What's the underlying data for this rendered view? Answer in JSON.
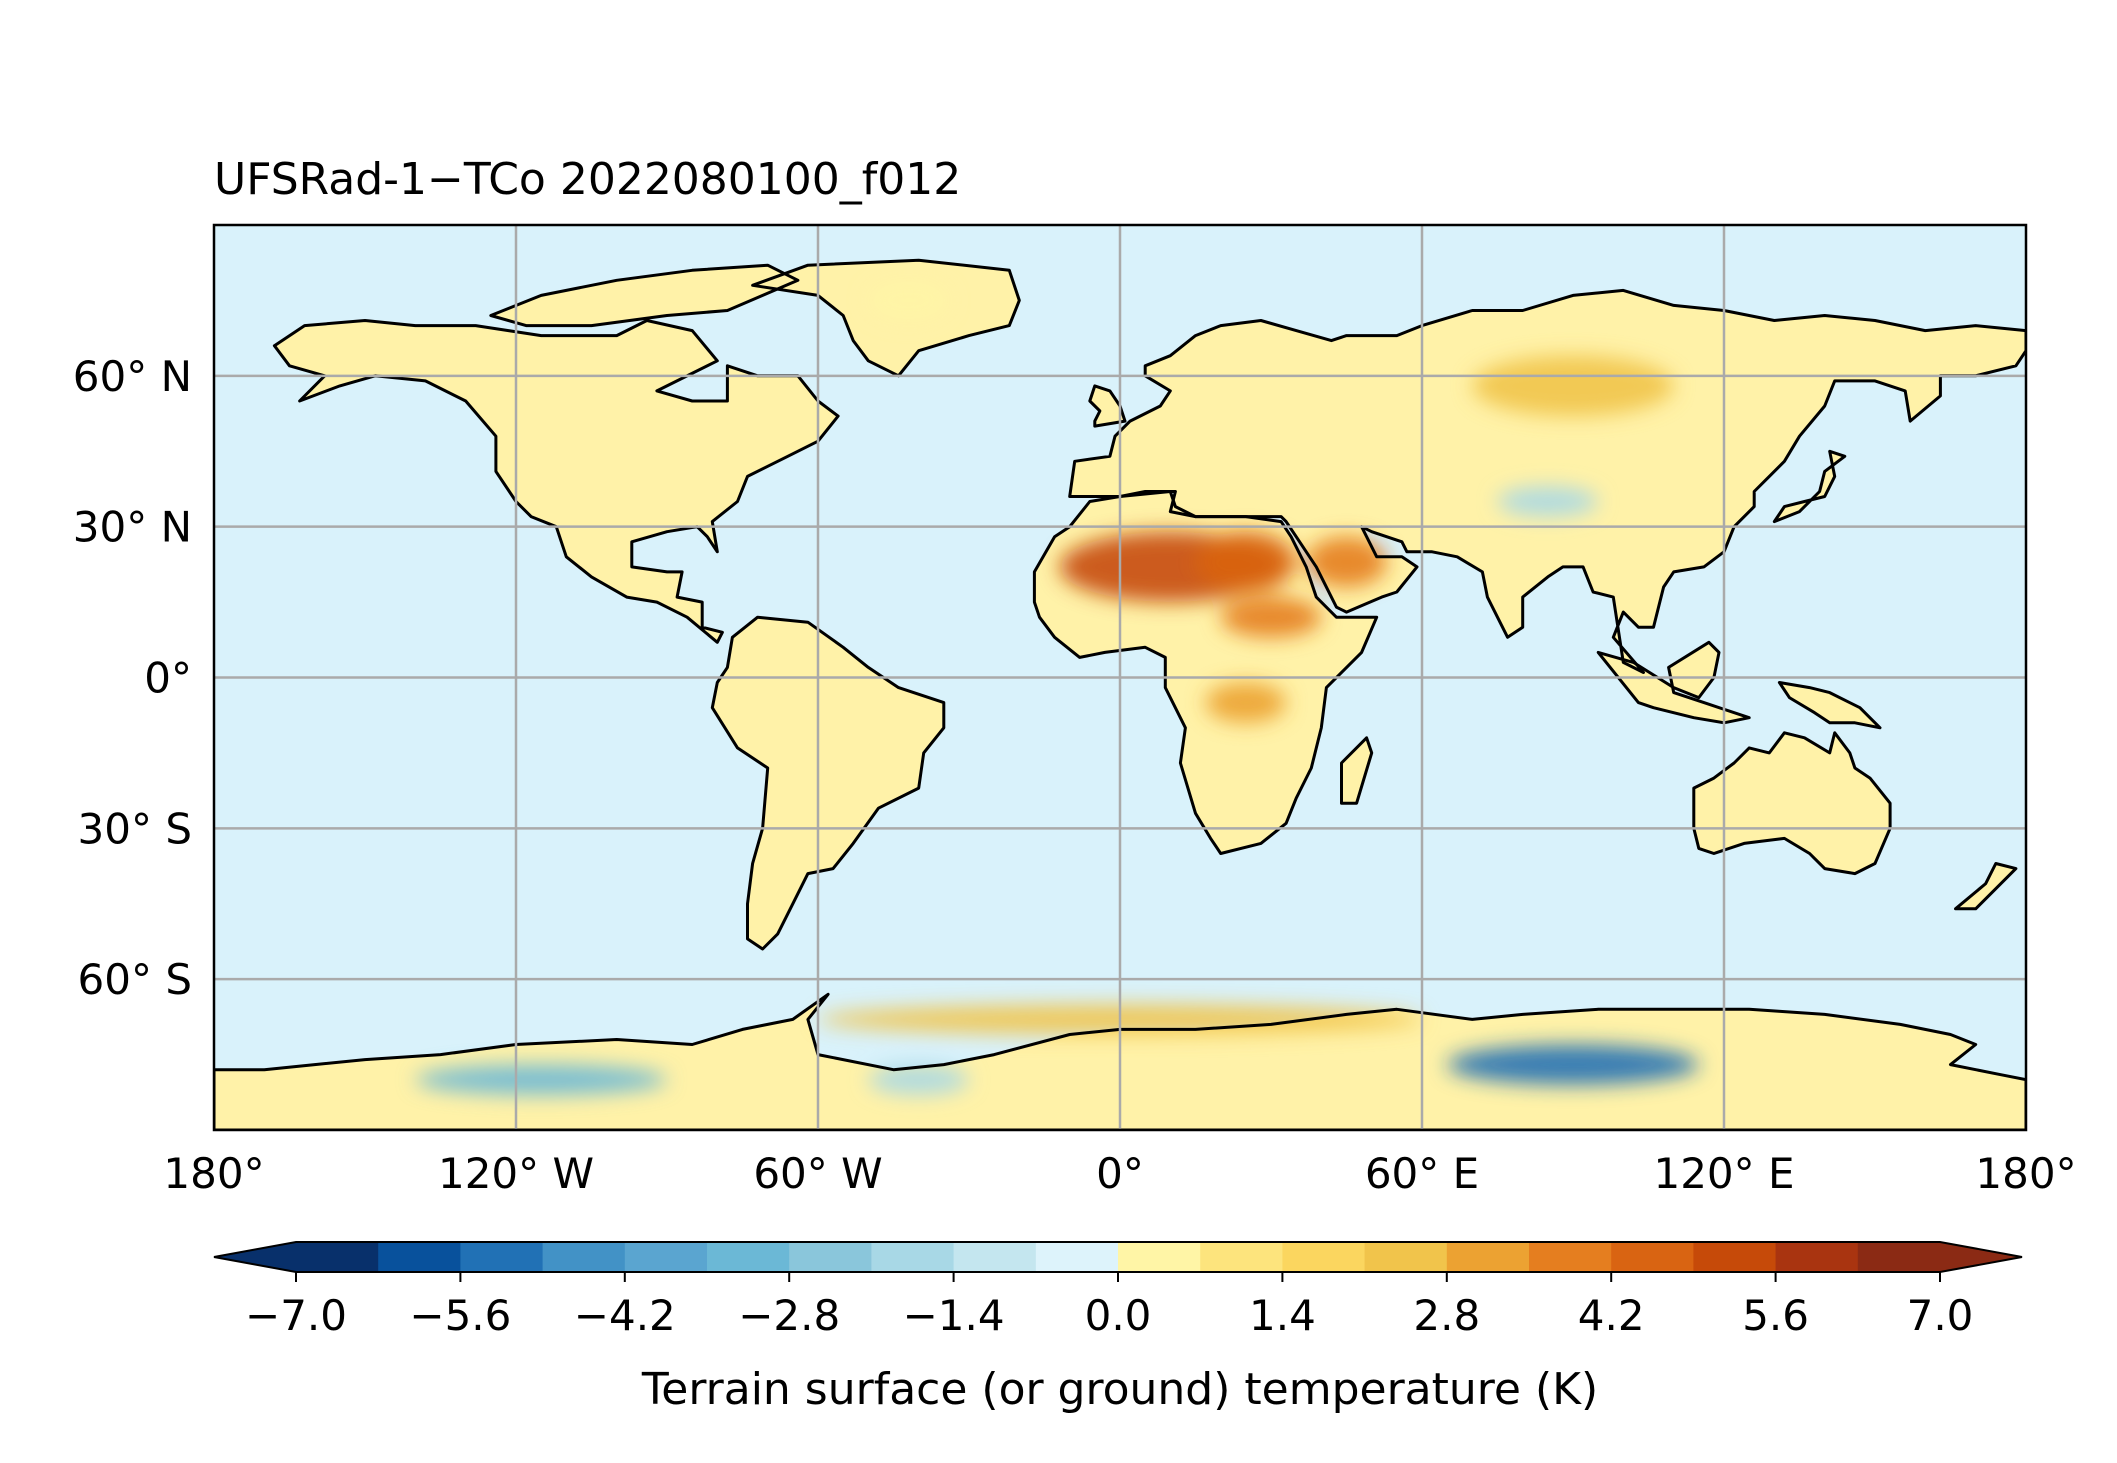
{
  "title": "UFSRad-1−TCo 2022080100_f012",
  "map": {
    "projection": "PlateCarree",
    "lon_range": [
      -180,
      180
    ],
    "lat_range": [
      -90,
      90
    ],
    "gridlines": true,
    "lat_ticks": [
      {
        "value": 60,
        "label": "60° N"
      },
      {
        "value": 30,
        "label": "30° N"
      },
      {
        "value": 0,
        "label": "0°"
      },
      {
        "value": -30,
        "label": "30° S"
      },
      {
        "value": -60,
        "label": "60° S"
      }
    ],
    "lon_ticks": [
      {
        "value": -180,
        "label": "180°"
      },
      {
        "value": -120,
        "label": "120° W"
      },
      {
        "value": -60,
        "label": "60° W"
      },
      {
        "value": 0,
        "label": "0°"
      },
      {
        "value": 60,
        "label": "60° E"
      },
      {
        "value": 120,
        "label": "120° E"
      },
      {
        "value": 180,
        "label": "180°"
      }
    ],
    "ocean_color": "#d9f2fb",
    "land_color": "#fff2a8",
    "coastline_color": "#000000"
  },
  "colorbar": {
    "label": "Terrain surface (or ground) temperature (K)",
    "vmin": -7.0,
    "vmax": 7.0,
    "extend": "both",
    "levels": [
      -7.0,
      -6.3,
      -5.6,
      -4.9,
      -4.2,
      -3.5,
      -2.8,
      -2.1,
      -1.4,
      -0.7,
      0.0,
      0.7,
      1.4,
      2.1,
      2.8,
      3.5,
      4.2,
      4.9,
      5.6,
      6.3,
      7.0
    ],
    "ticks": [
      {
        "value": -7.0,
        "label": "−7.0"
      },
      {
        "value": -5.6,
        "label": "−5.6"
      },
      {
        "value": -4.2,
        "label": "−4.2"
      },
      {
        "value": -2.8,
        "label": "−2.8"
      },
      {
        "value": -1.4,
        "label": "−1.4"
      },
      {
        "value": 0.0,
        "label": "0.0"
      },
      {
        "value": 1.4,
        "label": "1.4"
      },
      {
        "value": 2.8,
        "label": "2.8"
      },
      {
        "value": 4.2,
        "label": "4.2"
      },
      {
        "value": 5.6,
        "label": "5.6"
      },
      {
        "value": 7.0,
        "label": "7.0"
      }
    ],
    "under_color": "#08306b",
    "over_color": "#8b2a14",
    "colors": [
      "#08306b",
      "#08519c",
      "#2171b5",
      "#4292c6",
      "#5aa5d0",
      "#6bb8d6",
      "#8ac6db",
      "#a8d8e6",
      "#c4e6ef",
      "#ddf3fb",
      "#fff5a6",
      "#fde47d",
      "#fbd65f",
      "#f1c44b",
      "#eca232",
      "#e57e1f",
      "#d96412",
      "#c64a09",
      "#a93410",
      "#8b2a14"
    ]
  },
  "field_features": [
    {
      "name": "Sahara warm anomaly",
      "lon": 10,
      "lat": 22,
      "rx": 22,
      "ry": 7,
      "value": 5.2
    },
    {
      "name": "East Sahara warm anomaly",
      "lon": 25,
      "lat": 23,
      "rx": 10,
      "ry": 6,
      "value": 4.5
    },
    {
      "name": "Arabia warm anomaly",
      "lon": 45,
      "lat": 23,
      "rx": 8,
      "ry": 5,
      "value": 4.0
    },
    {
      "name": "Sahel warm anomaly",
      "lon": 30,
      "lat": 12,
      "rx": 10,
      "ry": 4,
      "value": 3.5
    },
    {
      "name": "Central Africa warm anomaly",
      "lon": 25,
      "lat": -5,
      "rx": 8,
      "ry": 4,
      "value": 3.0
    },
    {
      "name": "Siberia warm anomaly",
      "lon": 90,
      "lat": 58,
      "rx": 20,
      "ry": 6,
      "value": 2.2
    },
    {
      "name": "Tibet cool anomaly",
      "lon": 85,
      "lat": 35,
      "rx": 10,
      "ry": 3,
      "value": -2.0
    },
    {
      "name": "East Antarctica cold anomaly",
      "lon": 90,
      "lat": -77,
      "rx": 25,
      "ry": 4,
      "value": -5.0
    },
    {
      "name": "West Antarctica cold anomaly",
      "lon": -115,
      "lat": -80,
      "rx": 25,
      "ry": 3,
      "value": -3.0
    },
    {
      "name": "Weddell Sea cold anomaly",
      "lon": -40,
      "lat": -80,
      "rx": 10,
      "ry": 3,
      "value": -2.0
    },
    {
      "name": "Southern Ocean warm band",
      "lon": 0,
      "lat": -68,
      "rx": 60,
      "ry": 3,
      "value": 2.5
    },
    {
      "name": "Greenland interior",
      "lon": -42,
      "lat": 75,
      "rx": 8,
      "ry": 4,
      "value": 0.3
    }
  ]
}
